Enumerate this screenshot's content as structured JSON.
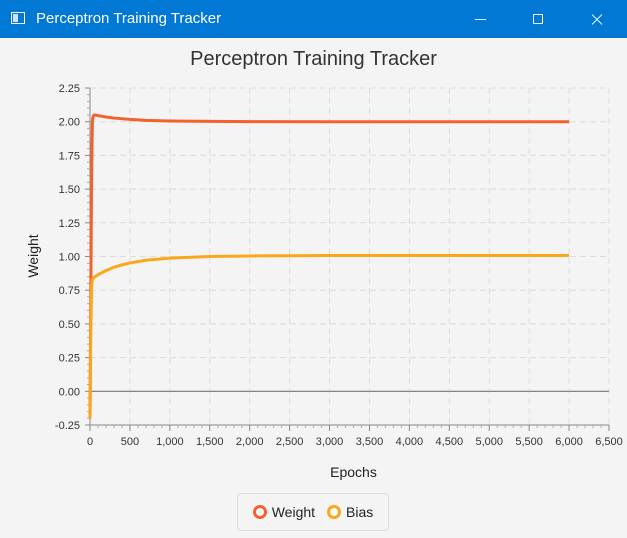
{
  "window": {
    "title": "Perceptron Training Tracker",
    "titlebar_color": "#0078d4"
  },
  "icons": {
    "app": "app-window-icon",
    "minimize": "minimize-icon",
    "maximize": "maximize-icon",
    "close": "close-icon"
  },
  "chart_data": {
    "type": "line",
    "title": "Perceptron Training Tracker",
    "xlabel": "Epochs",
    "ylabel": "Weight",
    "xlim": [
      0,
      6500
    ],
    "ylim": [
      -0.25,
      2.25
    ],
    "xticks": [
      0,
      500,
      1000,
      1500,
      2000,
      2500,
      3000,
      3500,
      4000,
      4500,
      5000,
      5500,
      6000,
      6500
    ],
    "xtick_labels": [
      "0",
      "500",
      "1,000",
      "1,500",
      "2,000",
      "2,500",
      "3,000",
      "3,500",
      "4,000",
      "4,500",
      "5,000",
      "5,500",
      "6,000",
      "6,500"
    ],
    "yticks": [
      -0.25,
      0,
      0.25,
      0.5,
      0.75,
      1.0,
      1.25,
      1.5,
      1.75,
      2.0,
      2.25
    ],
    "ytick_labels": [
      "-0.25",
      "0.00",
      "0.25",
      "0.50",
      "0.75",
      "1.00",
      "1.25",
      "1.50",
      "1.75",
      "2.00",
      "2.25"
    ],
    "grid": true,
    "legend_position": "bottom",
    "series": [
      {
        "name": "Weight",
        "color": "#f3622d",
        "x": [
          0,
          10,
          20,
          30,
          40,
          50,
          60,
          80,
          100,
          150,
          200,
          300,
          500,
          700,
          1000,
          1500,
          2000,
          3000,
          4000,
          5000,
          6000
        ],
        "y": [
          -0.2,
          0.7,
          1.6,
          2.01,
          2.04,
          2.05,
          2.05,
          2.048,
          2.045,
          2.04,
          2.035,
          2.027,
          2.017,
          2.01,
          2.005,
          2.002,
          2.001,
          2.0,
          2.0,
          2.0,
          2.0
        ]
      },
      {
        "name": "Bias",
        "color": "#fba71b",
        "x": [
          0,
          10,
          20,
          30,
          50,
          100,
          200,
          300,
          400,
          500,
          700,
          1000,
          1500,
          2000,
          2500,
          3000,
          4000,
          5000,
          6000
        ],
        "y": [
          -0.2,
          0.45,
          0.78,
          0.83,
          0.845,
          0.865,
          0.895,
          0.92,
          0.938,
          0.952,
          0.972,
          0.988,
          1.0,
          1.004,
          1.006,
          1.007,
          1.007,
          1.007,
          1.007
        ]
      }
    ]
  }
}
